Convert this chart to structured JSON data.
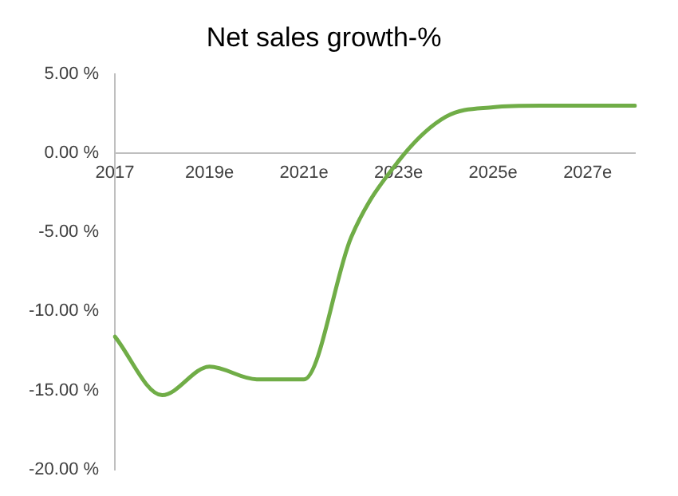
{
  "chart_data": {
    "type": "line",
    "title": "Net sales growth-%",
    "categories": [
      "2017",
      null,
      "2019e",
      null,
      "2021e",
      null,
      "2023e",
      null,
      "2025e",
      null,
      "2027e",
      null
    ],
    "series": [
      {
        "color": "#70ad47",
        "values": [
          -11.6,
          -15.3,
          -13.5,
          -14.3,
          -14.3,
          -5.3,
          -0.5,
          2.3,
          2.9,
          3.0,
          3.0,
          3.0
        ]
      }
    ],
    "ylim": [
      -20,
      5
    ],
    "yticks": [
      {
        "value": 5,
        "label": "5.00 %"
      },
      {
        "value": 0,
        "label": "0.00 %"
      },
      {
        "value": -5,
        "label": "-5.00 %"
      },
      {
        "value": -10,
        "label": "-10.00 %"
      },
      {
        "value": -15,
        "label": "-15.00 %"
      },
      {
        "value": -20,
        "label": "-20.00 %"
      }
    ],
    "grid": false,
    "legend": false,
    "marker": "none",
    "line_style": "solid"
  }
}
